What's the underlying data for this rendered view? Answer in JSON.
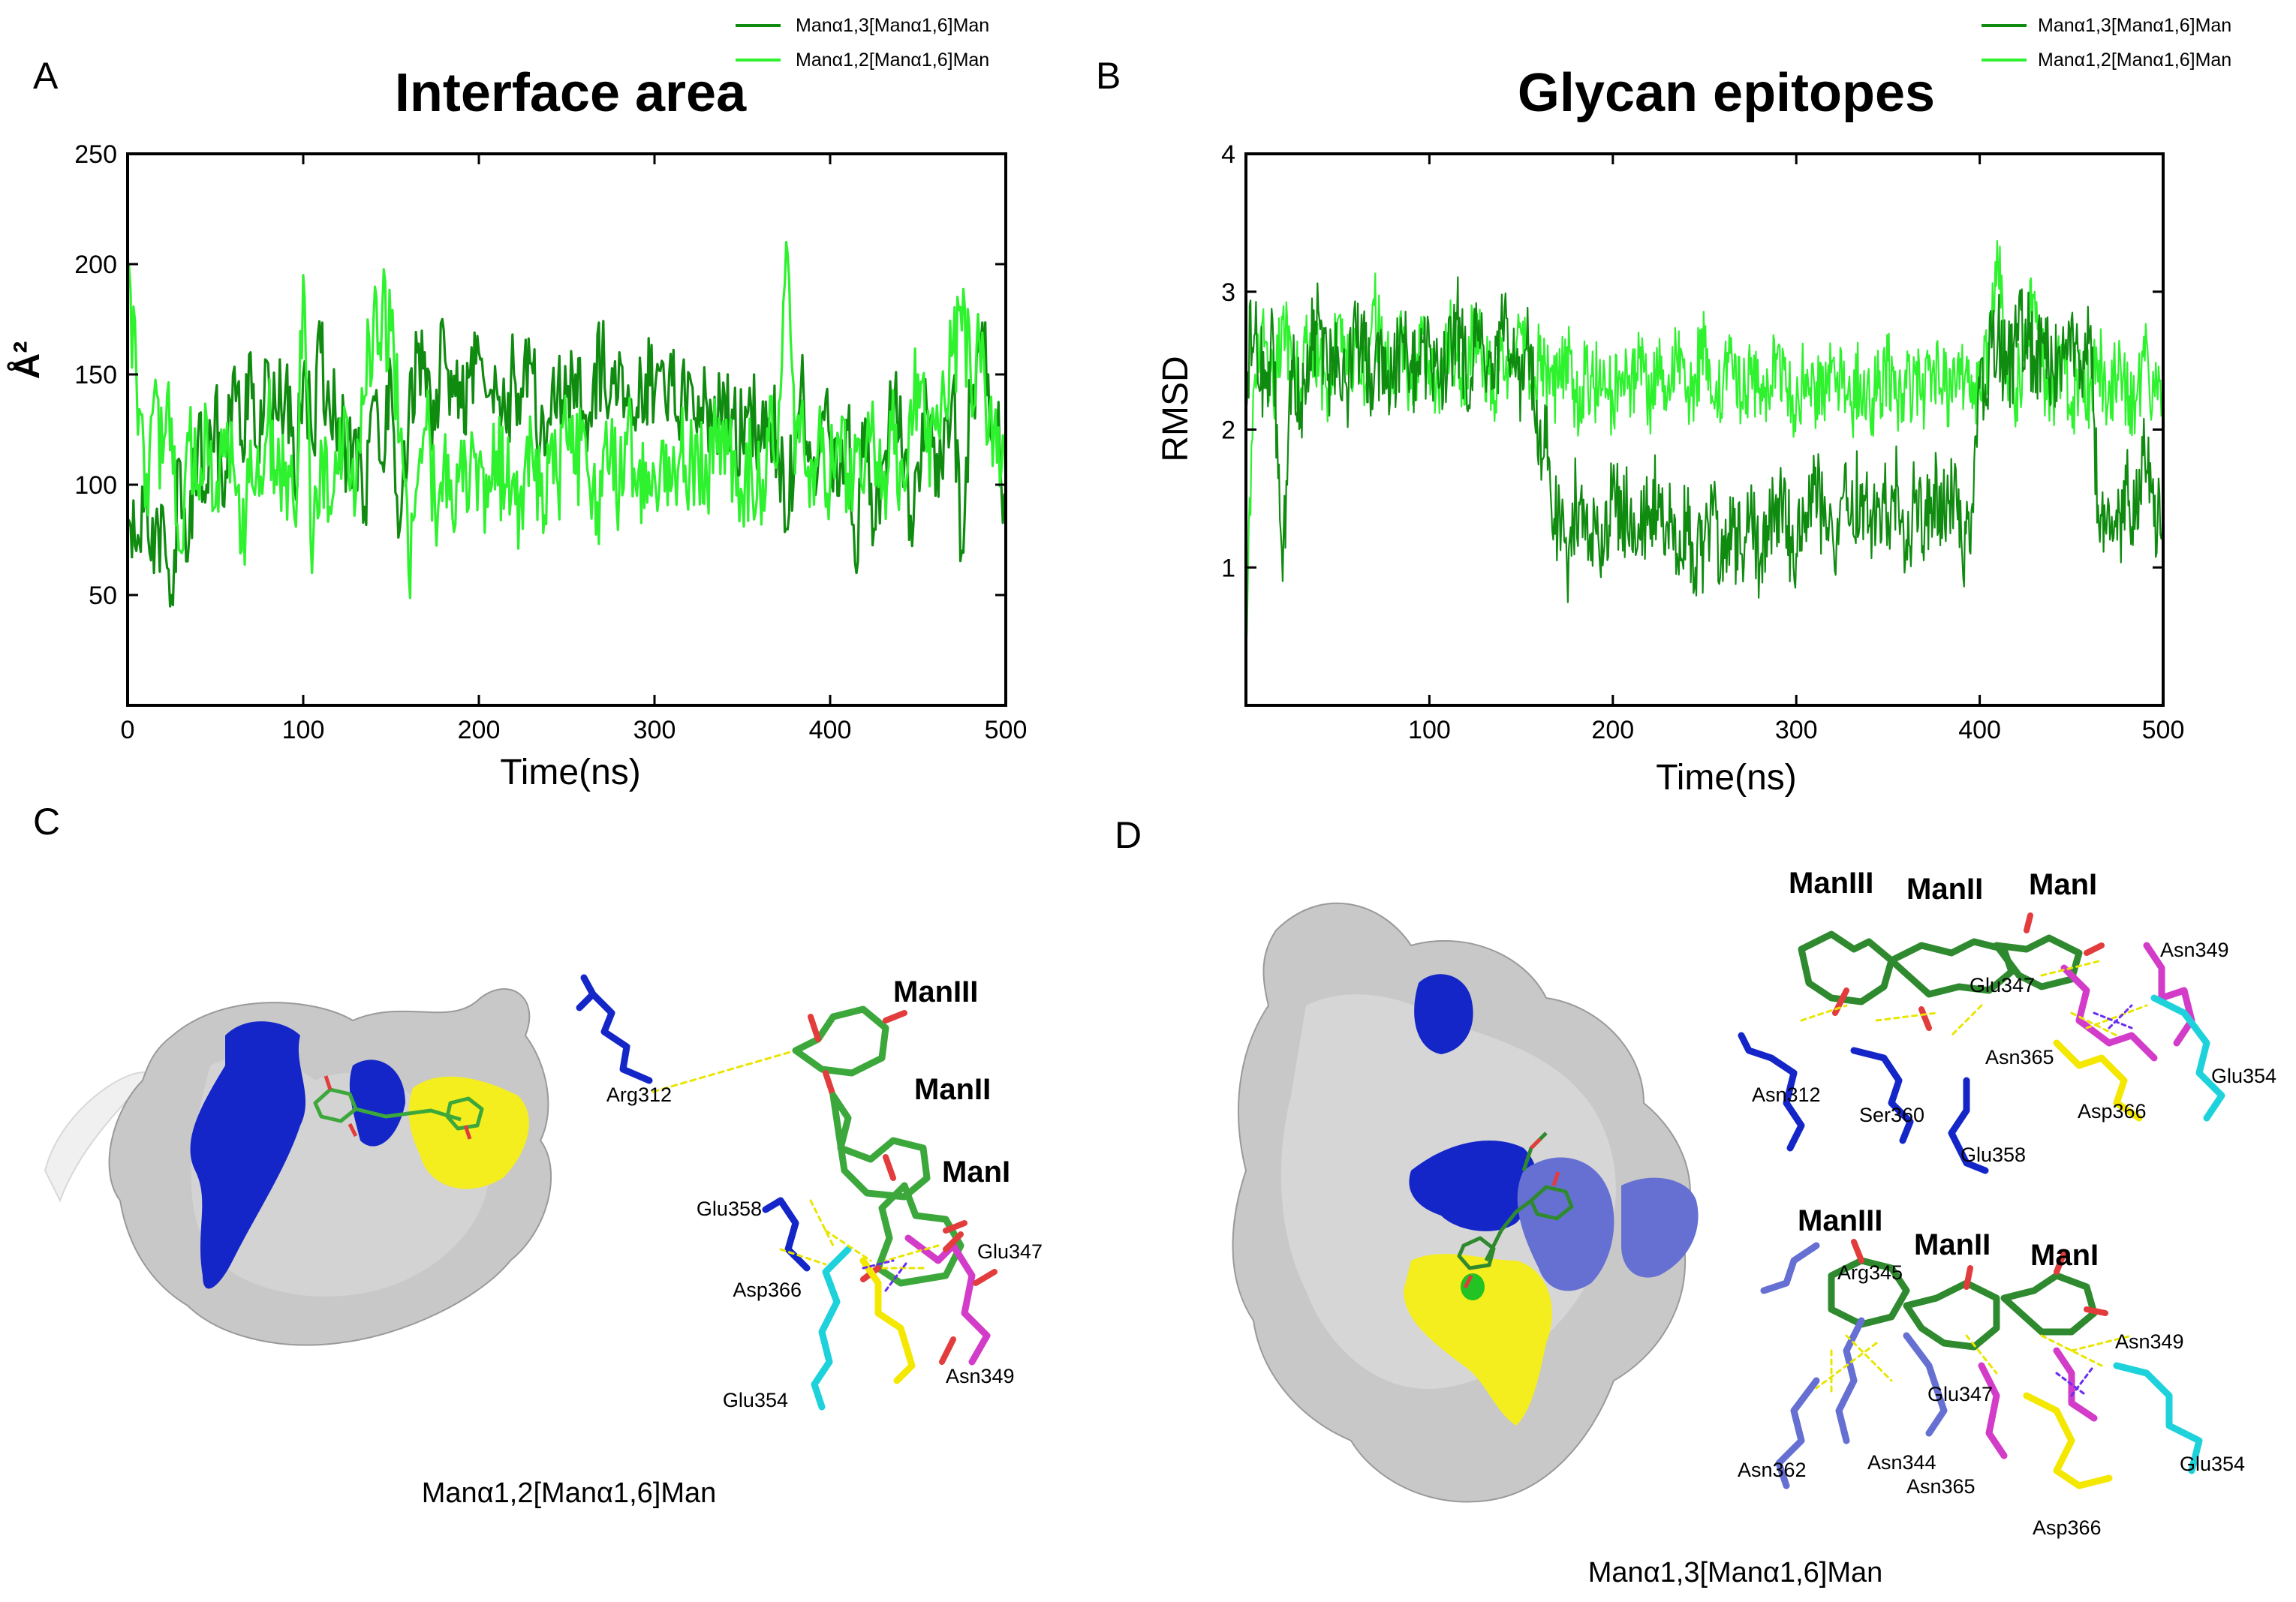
{
  "panels": {
    "A": {
      "letter": "A"
    },
    "B": {
      "letter": "B"
    },
    "C": {
      "letter": "C",
      "caption": "Manα1,2[Manα1,6]Man"
    },
    "D": {
      "letter": "D",
      "caption": "Manα1,3[Manα1,6]Man"
    }
  },
  "colors": {
    "dark_green": "#0f8b0f",
    "light_green": "#2ef22e",
    "blue": "#1426c8",
    "light_blue": "#6670d2",
    "yellow": "#f4ee1e",
    "magenta": "#d23cc8",
    "cyan": "#1ed2dc",
    "stick_green": "#3ca83c",
    "oxygen_red": "#e23c3c"
  },
  "chart_data": [
    {
      "type": "line",
      "title": "Interface area",
      "xlabel": "Time(ns)",
      "ylabel": "Å²",
      "xlim": [
        0,
        500
      ],
      "ylim": [
        0,
        250
      ],
      "xticks": [
        0,
        100,
        200,
        300,
        400,
        500
      ],
      "yticks": [
        50,
        100,
        150,
        200,
        250
      ],
      "legend_position": "top-right",
      "series": [
        {
          "name": "Manα1,3[Manα1,6]Man",
          "color": "#0f8b0f",
          "summary": {
            "min": 44,
            "max": 175,
            "typical": 125
          },
          "x": [
            0,
            5,
            10,
            15,
            20,
            25,
            30,
            35,
            40,
            45,
            50,
            55,
            60,
            65,
            70,
            75,
            80,
            85,
            90,
            95,
            100,
            105,
            110,
            115,
            120,
            125,
            130,
            135,
            140,
            145,
            150,
            155,
            160,
            165,
            170,
            175,
            180,
            185,
            190,
            195,
            200,
            205,
            210,
            215,
            220,
            225,
            230,
            235,
            240,
            245,
            250,
            255,
            260,
            265,
            270,
            275,
            280,
            285,
            290,
            295,
            300,
            305,
            310,
            315,
            320,
            325,
            330,
            335,
            340,
            345,
            350,
            355,
            360,
            365,
            370,
            375,
            380,
            385,
            390,
            395,
            400,
            405,
            410,
            415,
            420,
            425,
            430,
            435,
            440,
            445,
            450,
            455,
            460,
            465,
            470,
            475,
            480,
            485,
            490,
            495,
            500
          ],
          "values": [
            80,
            70,
            95,
            60,
            90,
            50,
            110,
            75,
            120,
            100,
            140,
            90,
            150,
            120,
            160,
            110,
            155,
            130,
            145,
            100,
            150,
            120,
            160,
            135,
            130,
            115,
            125,
            90,
            140,
            110,
            150,
            80,
            130,
            160,
            140,
            125,
            170,
            140,
            135,
            150,
            160,
            140,
            145,
            130,
            150,
            140,
            155,
            120,
            130,
            145,
            140,
            150,
            130,
            145,
            155,
            140,
            160,
            145,
            135,
            150,
            140,
            155,
            145,
            130,
            150,
            140,
            135,
            125,
            140,
            130,
            120,
            135,
            115,
            130,
            120,
            80,
            125,
            140,
            105,
            130,
            120,
            95,
            125,
            60,
            130,
            80,
            110,
            130,
            140,
            75,
            110,
            135,
            95,
            130,
            145,
            70,
            140,
            160,
            150,
            120,
            95
          ]
        },
        {
          "name": "Manα1,2[Manα1,6]Man",
          "color": "#2ef22e",
          "summary": {
            "min": 40,
            "max": 210,
            "typical": 115
          },
          "x": [
            0,
            5,
            10,
            15,
            20,
            25,
            30,
            35,
            40,
            45,
            50,
            55,
            60,
            65,
            70,
            75,
            80,
            85,
            90,
            95,
            100,
            105,
            110,
            115,
            120,
            125,
            130,
            135,
            140,
            145,
            150,
            155,
            160,
            165,
            170,
            175,
            180,
            185,
            190,
            195,
            200,
            205,
            210,
            215,
            220,
            225,
            230,
            235,
            240,
            245,
            250,
            255,
            260,
            265,
            270,
            275,
            280,
            285,
            290,
            295,
            300,
            305,
            310,
            315,
            320,
            325,
            330,
            335,
            340,
            345,
            350,
            355,
            360,
            365,
            370,
            375,
            380,
            385,
            390,
            395,
            400,
            405,
            410,
            415,
            420,
            425,
            430,
            435,
            440,
            445,
            450,
            455,
            460,
            465,
            470,
            475,
            480,
            485,
            490,
            495,
            500
          ],
          "values": [
            200,
            150,
            90,
            140,
            110,
            130,
            70,
            120,
            100,
            130,
            90,
            125,
            110,
            70,
            120,
            95,
            130,
            100,
            110,
            85,
            195,
            60,
            120,
            90,
            105,
            130,
            95,
            140,
            175,
            180,
            170,
            120,
            60,
            100,
            125,
            90,
            110,
            85,
            120,
            105,
            110,
            90,
            115,
            100,
            105,
            80,
            120,
            95,
            110,
            100,
            120,
            105,
            125,
            100,
            95,
            115,
            100,
            130,
            95,
            110,
            105,
            120,
            100,
            115,
            105,
            110,
            100,
            125,
            105,
            115,
            95,
            110,
            100,
            120,
            110,
            210,
            105,
            120,
            110,
            115,
            100,
            120,
            105,
            115,
            110,
            120,
            100,
            125,
            110,
            130,
            150,
            115,
            125,
            140,
            160,
            170,
            150,
            165,
            120,
            110,
            100
          ]
        }
      ]
    },
    {
      "type": "line",
      "title": "Glycan epitopes",
      "xlabel": "Time(ns)",
      "ylabel": "RMSD",
      "xlim": [
        0,
        500
      ],
      "ylim": [
        0,
        4
      ],
      "xticks": [
        100,
        200,
        300,
        400,
        500
      ],
      "yticks": [
        1,
        2,
        3,
        4
      ],
      "legend_position": "top-right",
      "series": [
        {
          "name": "Manα1,3[Manα1,6]Man",
          "color": "#0f8b0f",
          "summary": {
            "min": 0.7,
            "max": 3.2,
            "typical": 2.5
          },
          "x": [
            0,
            5,
            10,
            15,
            20,
            25,
            30,
            35,
            40,
            45,
            50,
            55,
            60,
            65,
            70,
            75,
            80,
            85,
            90,
            95,
            100,
            105,
            110,
            115,
            120,
            125,
            130,
            135,
            140,
            145,
            150,
            155,
            160,
            165,
            170,
            175,
            180,
            185,
            190,
            195,
            200,
            205,
            210,
            215,
            220,
            225,
            230,
            235,
            240,
            245,
            250,
            255,
            260,
            265,
            270,
            275,
            280,
            285,
            290,
            295,
            300,
            305,
            310,
            315,
            320,
            325,
            330,
            335,
            340,
            345,
            350,
            355,
            360,
            365,
            370,
            375,
            380,
            385,
            390,
            395,
            400,
            405,
            410,
            415,
            420,
            425,
            430,
            435,
            440,
            445,
            450,
            455,
            460,
            465,
            470,
            475,
            480,
            485,
            490,
            495,
            500
          ],
          "values": [
            2.5,
            2.7,
            2.3,
            2.6,
            0.9,
            2.5,
            2.2,
            2.6,
            2.8,
            2.4,
            2.6,
            2.3,
            2.7,
            2.5,
            2.4,
            2.6,
            2.3,
            2.7,
            2.5,
            2.4,
            2.6,
            2.3,
            2.5,
            2.8,
            2.4,
            2.6,
            2.5,
            2.3,
            2.7,
            2.5,
            2.4,
            2.6,
            2.0,
            1.8,
            1.3,
            1.0,
            1.5,
            1.2,
            1.4,
            1.1,
            1.6,
            1.3,
            1.5,
            1.2,
            1.4,
            1.6,
            1.3,
            1.1,
            1.4,
            1.0,
            1.2,
            1.5,
            0.9,
            1.3,
            1.1,
            1.4,
            1.0,
            1.2,
            1.5,
            1.3,
            1.1,
            1.4,
            1.6,
            1.3,
            1.2,
            1.5,
            1.4,
            1.6,
            1.3,
            1.5,
            1.4,
            1.6,
            1.2,
            1.5,
            1.3,
            1.6,
            1.4,
            1.5,
            1.2,
            1.1,
            2.3,
            2.5,
            2.7,
            2.4,
            2.6,
            2.8,
            2.5,
            2.7,
            2.4,
            2.6,
            2.8,
            2.5,
            2.7,
            1.3,
            1.5,
            1.2,
            1.6,
            1.4,
            1.8,
            1.3,
            1.6
          ]
        },
        {
          "name": "Manα1,2[Manα1,6]Man",
          "color": "#2ef22e",
          "summary": {
            "min": 0.6,
            "max": 3.4,
            "typical": 2.3
          },
          "x": [
            0,
            5,
            10,
            15,
            20,
            25,
            30,
            35,
            40,
            45,
            50,
            55,
            60,
            65,
            70,
            75,
            80,
            85,
            90,
            95,
            100,
            105,
            110,
            115,
            120,
            125,
            130,
            135,
            140,
            145,
            150,
            155,
            160,
            165,
            170,
            175,
            180,
            185,
            190,
            195,
            200,
            205,
            210,
            215,
            220,
            225,
            230,
            235,
            240,
            245,
            250,
            255,
            260,
            265,
            270,
            275,
            280,
            285,
            290,
            295,
            300,
            305,
            310,
            315,
            320,
            325,
            330,
            335,
            340,
            345,
            350,
            355,
            360,
            365,
            370,
            375,
            380,
            385,
            390,
            395,
            400,
            405,
            410,
            415,
            420,
            425,
            430,
            435,
            440,
            445,
            450,
            455,
            460,
            465,
            470,
            475,
            480,
            485,
            490,
            495,
            500
          ],
          "values": [
            0.6,
            2.4,
            2.6,
            2.2,
            2.8,
            2.5,
            2.3,
            2.7,
            2.5,
            2.3,
            2.8,
            2.4,
            2.6,
            2.3,
            2.9,
            2.5,
            2.4,
            2.7,
            2.3,
            2.6,
            2.5,
            2.3,
            2.7,
            2.5,
            2.4,
            2.8,
            2.5,
            2.3,
            2.6,
            2.4,
            2.7,
            2.3,
            2.5,
            2.4,
            2.3,
            2.6,
            2.2,
            2.4,
            2.3,
            2.5,
            2.2,
            2.4,
            2.3,
            2.6,
            2.2,
            2.4,
            2.3,
            2.5,
            2.2,
            2.4,
            2.6,
            2.2,
            2.3,
            2.5,
            2.2,
            2.4,
            2.3,
            2.2,
            2.6,
            2.3,
            2.2,
            2.4,
            2.3,
            2.2,
            2.5,
            2.3,
            2.2,
            2.4,
            2.2,
            2.3,
            2.5,
            2.2,
            2.3,
            2.4,
            2.2,
            2.5,
            2.3,
            2.2,
            2.4,
            2.2,
            2.3,
            2.5,
            3.2,
            2.4,
            2.3,
            2.6,
            3.0,
            2.4,
            2.3,
            2.5,
            2.2,
            2.4,
            2.3,
            2.5,
            2.2,
            2.4,
            2.3,
            2.2,
            2.5,
            2.3,
            2.4
          ]
        }
      ]
    }
  ],
  "structure_c": {
    "residue_labels": [
      "Arg312",
      "Glu358",
      "Asp366",
      "Glu354",
      "Glu347",
      "Asn349"
    ],
    "sugar_labels": [
      "ManIII",
      "ManII",
      "ManI"
    ]
  },
  "structure_d_top": {
    "residue_labels": [
      "Asn312",
      "Ser360",
      "Glu358",
      "Glu347",
      "Asn365",
      "Asp366",
      "Asn349",
      "Glu354"
    ],
    "sugar_labels": [
      "ManIII",
      "ManII",
      "ManI"
    ]
  },
  "structure_d_bottom": {
    "residue_labels": [
      "Arg345",
      "Glu347",
      "Asn349",
      "Asn362",
      "Asn344",
      "Asn365",
      "Asp366",
      "Glu354"
    ],
    "sugar_labels": [
      "ManIII",
      "ManII",
      "ManI"
    ]
  }
}
